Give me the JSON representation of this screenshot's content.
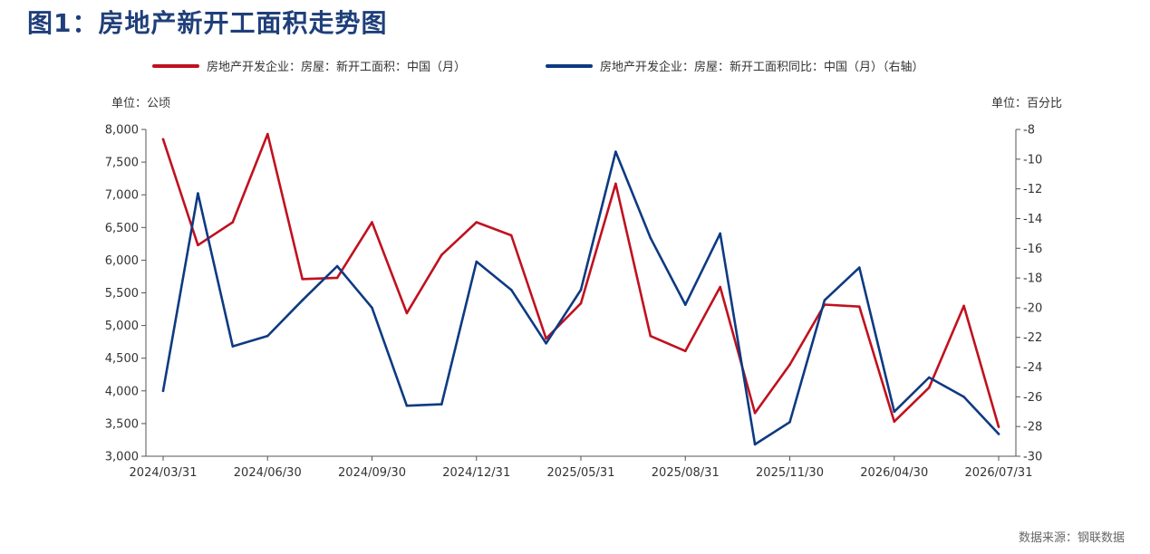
{
  "title": "图1：房地产新开工面积走势图",
  "legend": {
    "series1": "房地产开发企业：房屋：新开工面积：中国（月）",
    "series2": "房地产开发企业：房屋：新开工面积同比：中国（月）（右轴）"
  },
  "units": {
    "left": "单位：公顷",
    "right": "单位：百分比"
  },
  "source": "数据来源：钢联数据",
  "colors": {
    "series1": "#c0111f",
    "series2": "#0d3a82",
    "title": "#1f3f7a"
  },
  "chart_data": {
    "type": "line",
    "x": [
      "2024/03/31",
      "2024/04/30",
      "2024/05/31",
      "2024/06/30",
      "2024/07/31",
      "2024/08/31",
      "2024/09/30",
      "2024/10/31",
      "2024/11/30",
      "2024/12/31",
      "2025/03/31",
      "2025/04/30",
      "2025/05/31",
      "2025/06/30",
      "2025/07/31",
      "2025/08/31",
      "2025/09/30",
      "2025/10/31",
      "2025/11/30",
      "2025/12/31",
      "2026/03/31",
      "2026/04/30",
      "2026/05/31",
      "2026/06/30",
      "2026/07/31"
    ],
    "x_tick_labels": [
      "2024/03/31",
      "2024/06/30",
      "2024/09/30",
      "2024/12/31",
      "2025/05/31",
      "2025/08/31",
      "2025/11/30",
      "2026/04/30",
      "2026/07/31"
    ],
    "x_tick_indices": [
      0,
      3,
      6,
      9,
      12,
      15,
      18,
      21,
      24
    ],
    "series": [
      {
        "name": "房地产开发企业：房屋：新开工面积：中国（月）",
        "axis": "left",
        "values": [
          7850,
          6230,
          6580,
          7930,
          5710,
          5730,
          6580,
          5190,
          6080,
          6580,
          6380,
          4800,
          5340,
          7170,
          4840,
          4610,
          5590,
          3660,
          4400,
          5320,
          5290,
          3530,
          4050,
          5300,
          3450
        ]
      },
      {
        "name": "房地产开发企业：房屋：新开工面积同比：中国（月）（右轴）",
        "axis": "right",
        "values": [
          -25.6,
          -12.3,
          -22.6,
          -21.9,
          -19.5,
          -17.2,
          -20.0,
          -26.6,
          -26.5,
          -16.9,
          -18.8,
          -22.4,
          -18.8,
          -9.5,
          -15.3,
          -19.8,
          -15.0,
          -29.2,
          -27.7,
          -19.5,
          -17.3,
          -27.0,
          -24.7,
          -26.0,
          -28.5
        ]
      }
    ],
    "ylim_left": [
      3000,
      8000
    ],
    "yticks_left": [
      "3,000",
      "3,500",
      "4,000",
      "4,500",
      "5,000",
      "5,500",
      "6,000",
      "6,500",
      "7,000",
      "7,500",
      "8,000"
    ],
    "ylim_right": [
      -30,
      -8
    ],
    "yticks_right": [
      "-30",
      "-28",
      "-26",
      "-24",
      "-22",
      "-20",
      "-18",
      "-16",
      "-14",
      "-12",
      "-10",
      "-8"
    ],
    "grid": false,
    "legend_position": "top"
  }
}
